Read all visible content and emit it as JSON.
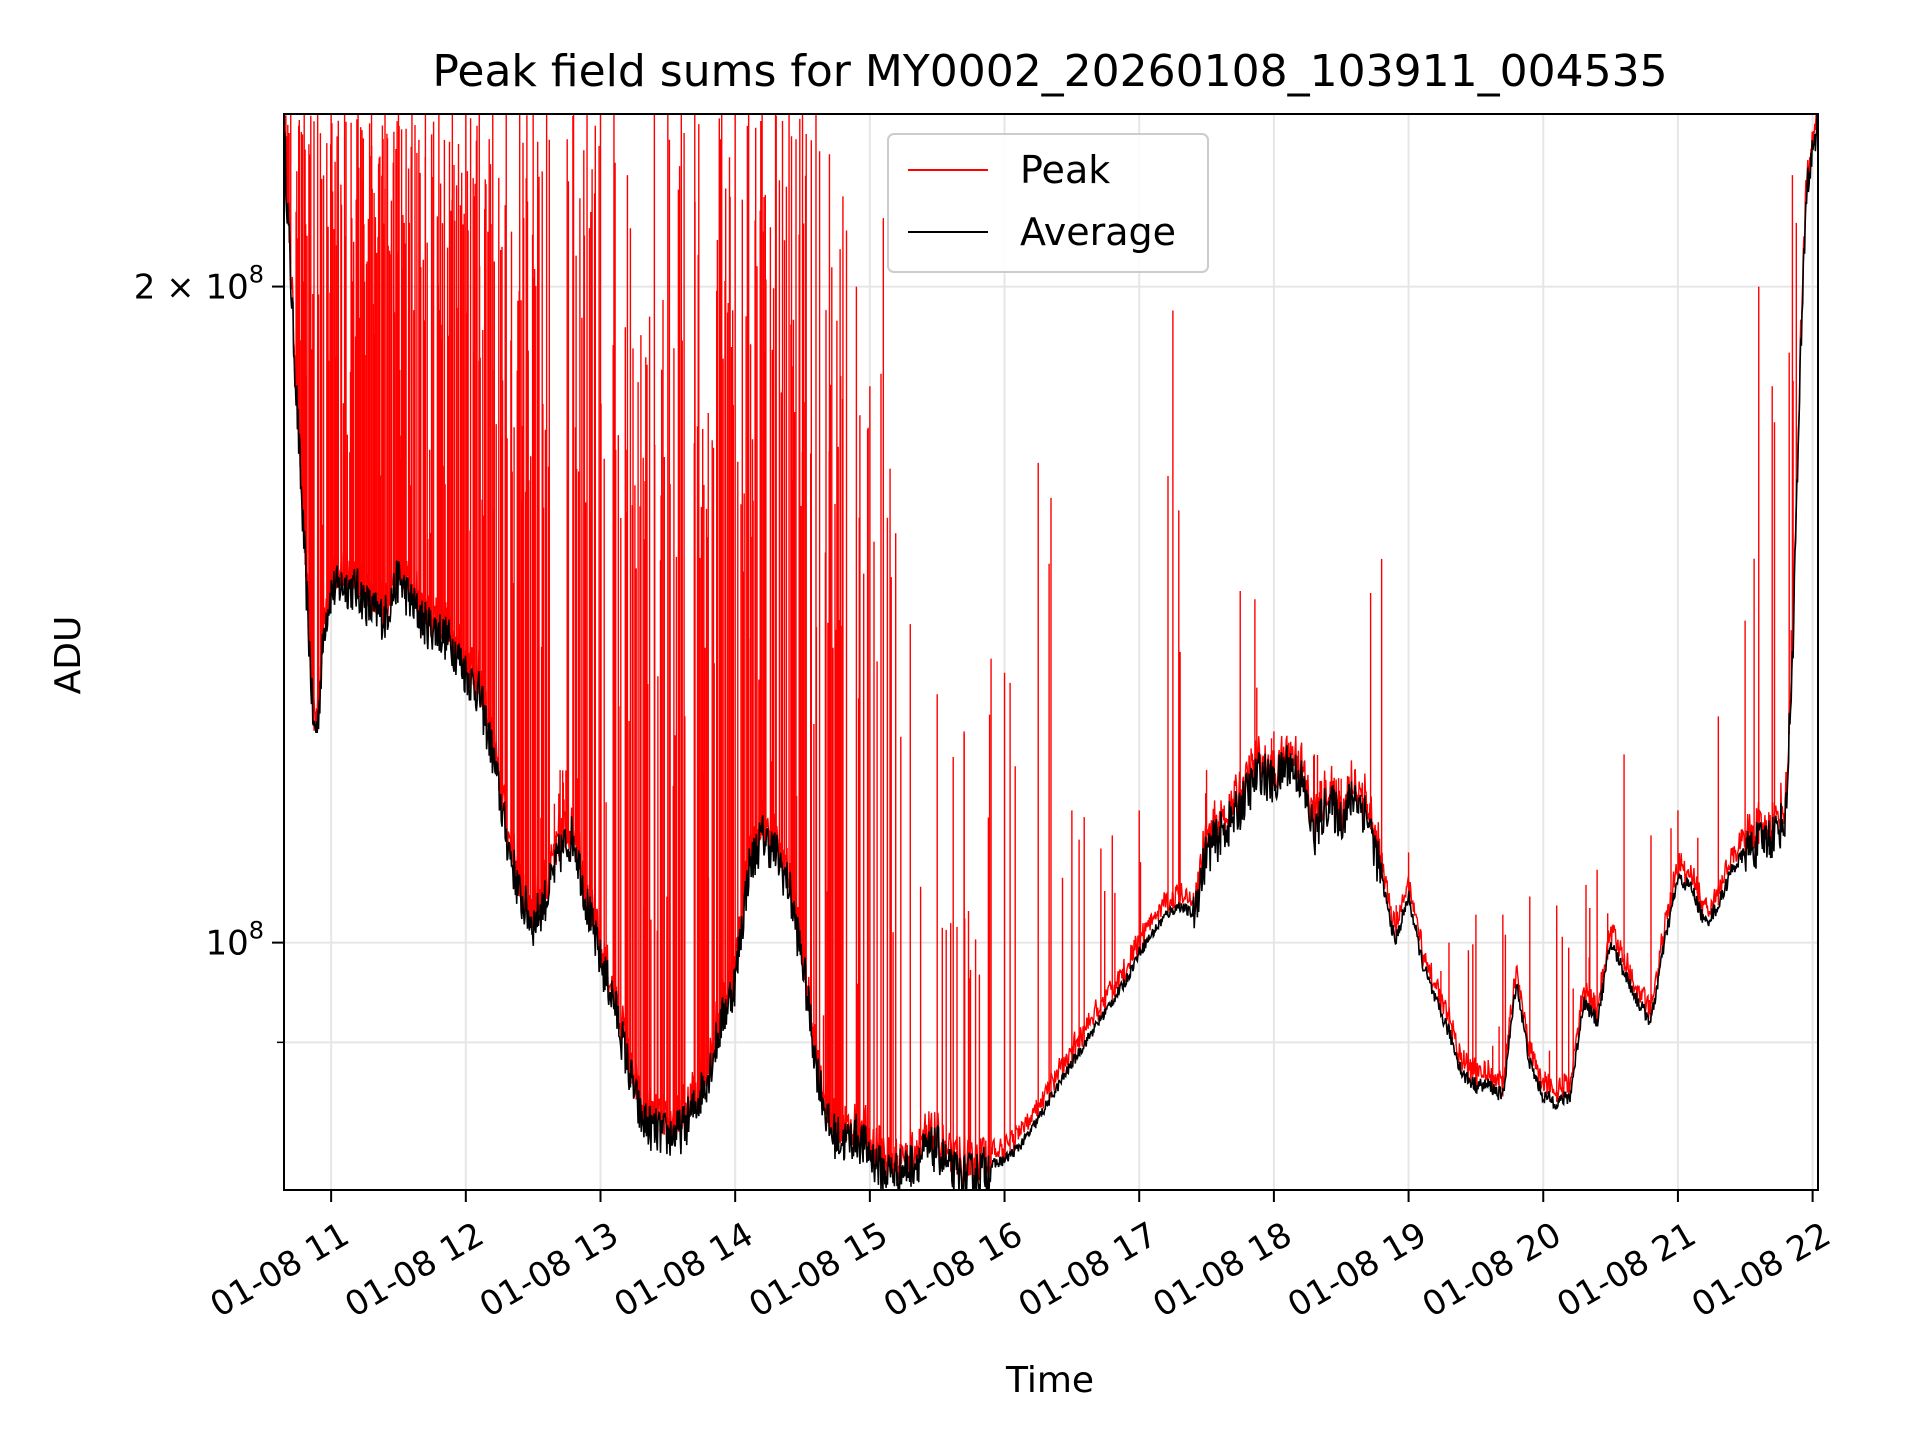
{
  "chart_data": {
    "type": "line",
    "title": "Peak field sums for MY0002_20260108_103911_004535",
    "xlabel": "Time",
    "ylabel": "ADU",
    "yscale": "log",
    "ylim": [
      77000000,
      240000000
    ],
    "xlim": [
      10.65,
      22.04
    ],
    "grid": true,
    "legend_position": "top-center",
    "x_ticks": [
      {
        "value": 11,
        "label": "01-08 11"
      },
      {
        "value": 12,
        "label": "01-08 12"
      },
      {
        "value": 13,
        "label": "01-08 13"
      },
      {
        "value": 14,
        "label": "01-08 14"
      },
      {
        "value": 15,
        "label": "01-08 15"
      },
      {
        "value": 16,
        "label": "01-08 16"
      },
      {
        "value": 17,
        "label": "01-08 17"
      },
      {
        "value": 18,
        "label": "01-08 18"
      },
      {
        "value": 19,
        "label": "01-08 19"
      },
      {
        "value": 20,
        "label": "01-08 20"
      },
      {
        "value": 21,
        "label": "01-08 21"
      },
      {
        "value": 22,
        "label": "01-08 22"
      }
    ],
    "y_major_ticks": [
      {
        "value": 100000000,
        "mantissa": "",
        "exp": "8",
        "base": "10"
      },
      {
        "value": 200000000,
        "mantissa": "2 × ",
        "exp": "8",
        "base": "10"
      }
    ],
    "y_minor_ticks": [
      90000000
    ],
    "series": [
      {
        "name": "Peak",
        "color": "#ff0000",
        "note": "envelope sampled from average plus intermittent spikes",
        "spikes": [
          {
            "x": 10.7,
            "y": 240000000
          },
          {
            "x": 10.8,
            "y": 240000000
          },
          {
            "x": 10.9,
            "y": 240000000
          },
          {
            "x": 11.0,
            "y": 240000000
          },
          {
            "x": 11.1,
            "y": 240000000
          },
          {
            "x": 11.2,
            "y": 240000000
          },
          {
            "x": 11.3,
            "y": 240000000
          },
          {
            "x": 11.4,
            "y": 240000000
          },
          {
            "x": 11.5,
            "y": 240000000
          },
          {
            "x": 11.6,
            "y": 240000000
          },
          {
            "x": 11.7,
            "y": 240000000
          },
          {
            "x": 11.8,
            "y": 240000000
          },
          {
            "x": 11.9,
            "y": 240000000
          },
          {
            "x": 12.0,
            "y": 240000000
          },
          {
            "x": 12.1,
            "y": 240000000
          },
          {
            "x": 12.2,
            "y": 240000000
          },
          {
            "x": 12.3,
            "y": 240000000
          },
          {
            "x": 12.4,
            "y": 240000000
          },
          {
            "x": 12.5,
            "y": 240000000
          },
          {
            "x": 12.6,
            "y": 240000000
          },
          {
            "x": 12.7,
            "y": 120000000
          },
          {
            "x": 12.8,
            "y": 240000000
          },
          {
            "x": 12.9,
            "y": 240000000
          },
          {
            "x": 13.0,
            "y": 240000000
          },
          {
            "x": 13.1,
            "y": 240000000
          },
          {
            "x": 13.2,
            "y": 225000000
          },
          {
            "x": 13.3,
            "y": 190000000
          },
          {
            "x": 13.4,
            "y": 240000000
          },
          {
            "x": 13.5,
            "y": 240000000
          },
          {
            "x": 13.6,
            "y": 240000000
          },
          {
            "x": 13.7,
            "y": 240000000
          },
          {
            "x": 13.8,
            "y": 175000000
          },
          {
            "x": 13.9,
            "y": 240000000
          },
          {
            "x": 14.0,
            "y": 240000000
          },
          {
            "x": 14.1,
            "y": 240000000
          },
          {
            "x": 14.2,
            "y": 240000000
          },
          {
            "x": 14.3,
            "y": 240000000
          },
          {
            "x": 14.4,
            "y": 240000000
          },
          {
            "x": 14.5,
            "y": 240000000
          },
          {
            "x": 14.6,
            "y": 240000000
          },
          {
            "x": 14.7,
            "y": 230000000
          },
          {
            "x": 14.8,
            "y": 220000000
          },
          {
            "x": 14.9,
            "y": 200000000
          },
          {
            "x": 15.0,
            "y": 180000000
          },
          {
            "x": 15.1,
            "y": 215000000
          },
          {
            "x": 15.15,
            "y": 165000000
          },
          {
            "x": 15.3,
            "y": 140000000
          },
          {
            "x": 15.5,
            "y": 130000000
          },
          {
            "x": 15.7,
            "y": 125000000
          },
          {
            "x": 15.9,
            "y": 135000000
          },
          {
            "x": 16.0,
            "y": 133000000
          },
          {
            "x": 16.25,
            "y": 166000000
          },
          {
            "x": 16.5,
            "y": 115000000
          },
          {
            "x": 16.8,
            "y": 112000000
          },
          {
            "x": 17.0,
            "y": 115000000
          },
          {
            "x": 17.25,
            "y": 195000000
          },
          {
            "x": 17.5,
            "y": 120000000
          },
          {
            "x": 17.75,
            "y": 145000000
          },
          {
            "x": 18.0,
            "y": 125000000
          },
          {
            "x": 18.3,
            "y": 122000000
          },
          {
            "x": 18.6,
            "y": 120000000
          },
          {
            "x": 18.8,
            "y": 150000000
          },
          {
            "x": 19.0,
            "y": 110000000
          },
          {
            "x": 19.3,
            "y": 100000000
          },
          {
            "x": 19.5,
            "y": 103000000
          },
          {
            "x": 19.7,
            "y": 103000000
          },
          {
            "x": 19.9,
            "y": 105000000
          },
          {
            "x": 20.1,
            "y": 104000000
          },
          {
            "x": 20.4,
            "y": 108000000
          },
          {
            "x": 20.6,
            "y": 122000000
          },
          {
            "x": 20.8,
            "y": 112000000
          },
          {
            "x": 21.0,
            "y": 115000000
          },
          {
            "x": 21.3,
            "y": 127000000
          },
          {
            "x": 21.6,
            "y": 200000000
          },
          {
            "x": 21.7,
            "y": 180000000
          },
          {
            "x": 21.85,
            "y": 225000000
          }
        ]
      },
      {
        "name": "Average",
        "color": "#000000",
        "points": [
          [
            10.65,
            235000000
          ],
          [
            10.72,
            190000000
          ],
          [
            10.78,
            160000000
          ],
          [
            10.83,
            140000000
          ],
          [
            10.87,
            125000000
          ],
          [
            10.9,
            126000000
          ],
          [
            10.95,
            140000000
          ],
          [
            11.0,
            145000000
          ],
          [
            11.1,
            146000000
          ],
          [
            11.2,
            145000000
          ],
          [
            11.3,
            142000000
          ],
          [
            11.4,
            141000000
          ],
          [
            11.5,
            147000000
          ],
          [
            11.6,
            143000000
          ],
          [
            11.7,
            140000000
          ],
          [
            11.8,
            139000000
          ],
          [
            11.9,
            137000000
          ],
          [
            12.0,
            133000000
          ],
          [
            12.1,
            130000000
          ],
          [
            12.2,
            122000000
          ],
          [
            12.3,
            112000000
          ],
          [
            12.4,
            105000000
          ],
          [
            12.5,
            102000000
          ],
          [
            12.6,
            105000000
          ],
          [
            12.7,
            110000000
          ],
          [
            12.8,
            112000000
          ],
          [
            12.9,
            104000000
          ],
          [
            13.0,
            98000000
          ],
          [
            13.1,
            94000000
          ],
          [
            13.2,
            88000000
          ],
          [
            13.3,
            83000000
          ],
          [
            13.4,
            82000000
          ],
          [
            13.5,
            81500000
          ],
          [
            13.6,
            82000000
          ],
          [
            13.7,
            84000000
          ],
          [
            13.8,
            87000000
          ],
          [
            13.9,
            92000000
          ],
          [
            14.0,
            96000000
          ],
          [
            14.1,
            108000000
          ],
          [
            14.2,
            112000000
          ],
          [
            14.3,
            110000000
          ],
          [
            14.4,
            106000000
          ],
          [
            14.5,
            98000000
          ],
          [
            14.6,
            88000000
          ],
          [
            14.7,
            82000000
          ],
          [
            14.8,
            81000000
          ],
          [
            14.9,
            81500000
          ],
          [
            15.0,
            80000000
          ],
          [
            15.1,
            78500000
          ],
          [
            15.2,
            78500000
          ],
          [
            15.3,
            79000000
          ],
          [
            15.4,
            80000000
          ],
          [
            15.5,
            80500000
          ],
          [
            15.6,
            78500000
          ],
          [
            15.7,
            78000000
          ],
          [
            15.8,
            78500000
          ],
          [
            15.9,
            79000000
          ],
          [
            16.0,
            79500000
          ],
          [
            16.1,
            80500000
          ],
          [
            16.2,
            82000000
          ],
          [
            16.3,
            84000000
          ],
          [
            16.4,
            86000000
          ],
          [
            16.5,
            88000000
          ],
          [
            16.6,
            90000000
          ],
          [
            16.7,
            92000000
          ],
          [
            16.8,
            94000000
          ],
          [
            16.9,
            96000000
          ],
          [
            17.0,
            99000000
          ],
          [
            17.1,
            101000000
          ],
          [
            17.2,
            103000000
          ],
          [
            17.3,
            104000000
          ],
          [
            17.4,
            103000000
          ],
          [
            17.5,
            110000000
          ],
          [
            17.6,
            112000000
          ],
          [
            17.7,
            114000000
          ],
          [
            17.8,
            117000000
          ],
          [
            17.9,
            120000000
          ],
          [
            18.0,
            118000000
          ],
          [
            18.1,
            121000000
          ],
          [
            18.2,
            119000000
          ],
          [
            18.3,
            112000000
          ],
          [
            18.4,
            116000000
          ],
          [
            18.5,
            114000000
          ],
          [
            18.6,
            117000000
          ],
          [
            18.7,
            114000000
          ],
          [
            18.8,
            107000000
          ],
          [
            18.9,
            100000000
          ],
          [
            19.0,
            105000000
          ],
          [
            19.1,
            98000000
          ],
          [
            19.2,
            94000000
          ],
          [
            19.3,
            91000000
          ],
          [
            19.4,
            87000000
          ],
          [
            19.5,
            86000000
          ],
          [
            19.6,
            86000000
          ],
          [
            19.7,
            85000000
          ],
          [
            19.8,
            96000000
          ],
          [
            19.9,
            88000000
          ],
          [
            20.0,
            85000000
          ],
          [
            20.1,
            84500000
          ],
          [
            20.2,
            85000000
          ],
          [
            20.3,
            94000000
          ],
          [
            20.4,
            92000000
          ],
          [
            20.5,
            100000000
          ],
          [
            20.6,
            97000000
          ],
          [
            20.7,
            94000000
          ],
          [
            20.8,
            92000000
          ],
          [
            20.9,
            100000000
          ],
          [
            21.0,
            107000000
          ],
          [
            21.1,
            106000000
          ],
          [
            21.2,
            102000000
          ],
          [
            21.3,
            104000000
          ],
          [
            21.4,
            108000000
          ],
          [
            21.5,
            110000000
          ],
          [
            21.6,
            111000000
          ],
          [
            21.7,
            112000000
          ],
          [
            21.8,
            114000000
          ],
          [
            21.85,
            135000000
          ],
          [
            21.9,
            175000000
          ],
          [
            21.95,
            220000000
          ],
          [
            22.04,
            240000000
          ]
        ]
      }
    ]
  }
}
